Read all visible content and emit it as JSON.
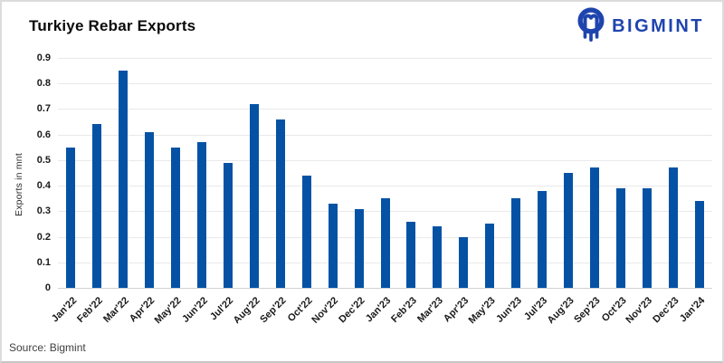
{
  "header": {
    "title": "Turkiye Rebar Exports",
    "logo_text": "BIGMINT",
    "logo_color": "#1e44ad"
  },
  "chart_data": {
    "type": "bar",
    "title": "Turkiye Rebar Exports",
    "categories": [
      "Jan'22",
      "Feb'22",
      "Mar'22",
      "Apr'22",
      "May'22",
      "Jun'22",
      "Jul'22",
      "Aug'22",
      "Sep'22",
      "Oct'22",
      "Nov'22",
      "Dec'22",
      "Jan'23",
      "Feb'23",
      "Mar'23",
      "Apr'23",
      "May'23",
      "Jun'23",
      "Jul'23",
      "Aug'23",
      "Sep'23",
      "Oct'23",
      "Nov'23",
      "Dec'23",
      "Jan'24"
    ],
    "values": [
      0.55,
      0.64,
      0.85,
      0.61,
      0.55,
      0.57,
      0.49,
      0.72,
      0.66,
      0.44,
      0.33,
      0.31,
      0.35,
      0.26,
      0.24,
      0.2,
      0.25,
      0.35,
      0.38,
      0.45,
      0.47,
      0.39,
      0.39,
      0.47,
      0.34
    ],
    "xlabel": "",
    "ylabel": "Exports in mnt",
    "ylim": [
      0,
      0.9
    ],
    "yticks": [
      "0",
      "0.1",
      "0.2",
      "0.3",
      "0.4",
      "0.5",
      "0.6",
      "0.7",
      "0.8",
      "0.9"
    ],
    "grid": "horizontal",
    "legend": "none",
    "bar_color": "#0552a5"
  },
  "footer": {
    "source": "Source: Bigmint"
  }
}
